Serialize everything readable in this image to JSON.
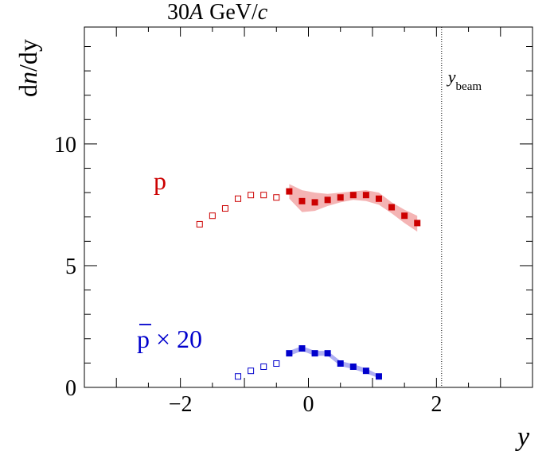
{
  "chart_data": {
    "type": "scatter",
    "title": "30A GeV/c",
    "title_parts": {
      "energy": "30",
      "A": "A",
      "unit": "GeV/",
      "c": "c"
    },
    "xlabel": "y",
    "ylabel": "dn/dy",
    "ylabel_parts": {
      "d1": "d",
      "n": "n",
      "rest": "/dy"
    },
    "xlim": [
      -3.5,
      3.5
    ],
    "ylim": [
      0,
      14.8
    ],
    "xticks": [
      -2,
      0,
      2
    ],
    "xtick_labels": [
      "−2",
      "0",
      "2"
    ],
    "yticks": [
      0,
      5,
      10
    ],
    "ytick_labels": [
      "0",
      "5",
      "10"
    ],
    "beam_line": {
      "x": 2.08,
      "label_main": "y",
      "label_sub": "beam"
    },
    "series": [
      {
        "name": "p",
        "label": "p",
        "color": "#cc0000",
        "band_color": "#f2a7a7",
        "measured": {
          "x": [
            -0.3,
            -0.1,
            0.1,
            0.3,
            0.5,
            0.7,
            0.9,
            1.1,
            1.3,
            1.5,
            1.7
          ],
          "y": [
            8.05,
            7.65,
            7.6,
            7.7,
            7.8,
            7.9,
            7.9,
            7.75,
            7.4,
            7.05,
            6.75
          ],
          "band_low": [
            7.75,
            7.2,
            7.25,
            7.45,
            7.6,
            7.7,
            7.65,
            7.5,
            7.15,
            6.75,
            6.4
          ],
          "band_high": [
            8.35,
            8.1,
            8.0,
            7.95,
            8.0,
            8.05,
            8.1,
            8.0,
            7.6,
            7.3,
            7.05
          ]
        },
        "reflected": {
          "x": [
            -1.7,
            -1.5,
            -1.3,
            -1.1,
            -0.9,
            -0.7,
            -0.5
          ],
          "y": [
            6.7,
            7.05,
            7.35,
            7.75,
            7.9,
            7.9,
            7.8
          ]
        }
      },
      {
        "name": "pbar x 20",
        "label": "p × 20",
        "label_parts": {
          "symbol": "p",
          "times": "× 20"
        },
        "color": "#0000cc",
        "band_color": "#a0a0f0",
        "measured": {
          "x": [
            -0.3,
            -0.1,
            0.1,
            0.3,
            0.5,
            0.7,
            0.9,
            1.1
          ],
          "y": [
            1.4,
            1.6,
            1.4,
            1.4,
            0.98,
            0.85,
            0.68,
            0.45
          ],
          "band_low": [
            1.3,
            1.5,
            1.3,
            1.3,
            0.88,
            0.75,
            0.58,
            0.38
          ],
          "band_high": [
            1.5,
            1.7,
            1.5,
            1.5,
            1.08,
            0.95,
            0.78,
            0.52
          ]
        },
        "reflected": {
          "x": [
            -1.1,
            -0.9,
            -0.7,
            -0.5
          ],
          "y": [
            0.45,
            0.68,
            0.85,
            0.98
          ]
        }
      }
    ]
  }
}
